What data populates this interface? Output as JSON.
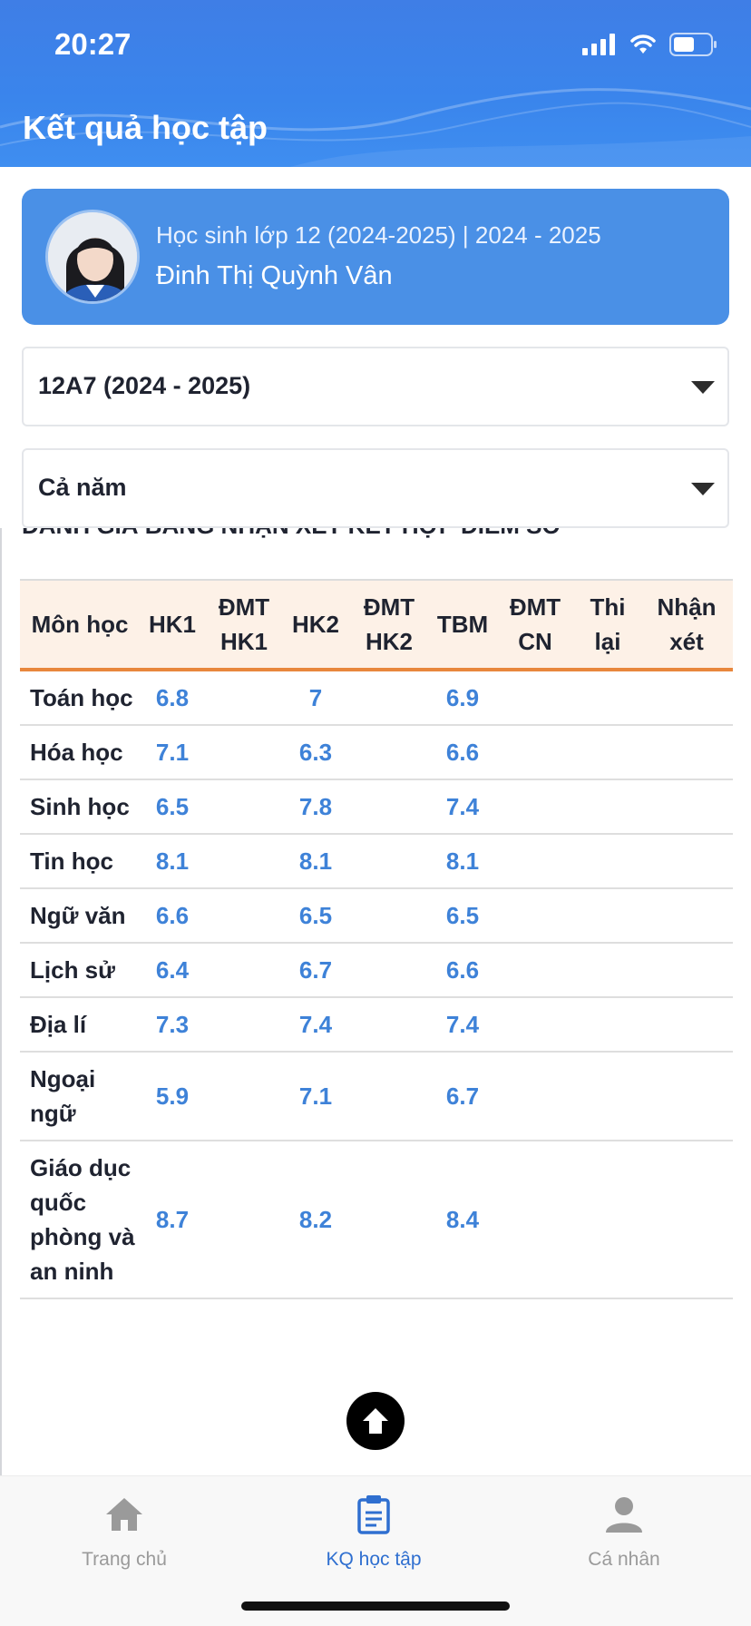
{
  "status_bar": {
    "time": "20:27"
  },
  "header": {
    "title": "Kết quả học tập"
  },
  "profile": {
    "class_line": "Học sinh lớp 12 (2024-2025) | 2024 - 2025",
    "name": "Đinh Thị Quỳnh Vân"
  },
  "filters": {
    "class_value": "12A7 (2024 - 2025)",
    "term_value": "Cả năm"
  },
  "section": {
    "title": "ĐÁNH GIÁ BẰNG NHẬN XÉT KẾT HỢP ĐIỂM SỐ"
  },
  "table": {
    "headers": [
      "Môn học",
      "HK1",
      "ĐMT HK1",
      "HK2",
      "ĐMT HK2",
      "TBM",
      "ĐMT CN",
      "Thi lại",
      "Nhận xét"
    ],
    "rows": [
      {
        "subject": "Toán học",
        "hk1": "6.8",
        "hk2": "7",
        "tbm": "6.9"
      },
      {
        "subject": "Hóa học",
        "hk1": "7.1",
        "hk2": "6.3",
        "tbm": "6.6"
      },
      {
        "subject": "Sinh học",
        "hk1": "6.5",
        "hk2": "7.8",
        "tbm": "7.4"
      },
      {
        "subject": "Tin học",
        "hk1": "8.1",
        "hk2": "8.1",
        "tbm": "8.1"
      },
      {
        "subject": "Ngữ văn",
        "hk1": "6.6",
        "hk2": "6.5",
        "tbm": "6.5"
      },
      {
        "subject": "Lịch sử",
        "hk1": "6.4",
        "hk2": "6.7",
        "tbm": "6.6"
      },
      {
        "subject": "Địa lí",
        "hk1": "7.3",
        "hk2": "7.4",
        "tbm": "7.4"
      },
      {
        "subject": "Ngoại ngữ",
        "hk1": "5.9",
        "hk2": "7.1",
        "tbm": "6.7"
      },
      {
        "subject": "Giáo dục quốc phòng và an ninh",
        "hk1": "8.7",
        "hk2": "8.2",
        "tbm": "8.4"
      }
    ]
  },
  "bottom_nav": {
    "items": [
      {
        "label": "Trang chủ",
        "icon": "home-icon"
      },
      {
        "label": "KQ học tập",
        "icon": "clipboard-icon"
      },
      {
        "label": "Cá nhân",
        "icon": "person-icon"
      }
    ]
  },
  "colors": {
    "header_blue": "#3f84ec",
    "card_blue": "#4a90e6",
    "score_blue": "#3e82d8",
    "table_header_bg": "#fdf1e7",
    "table_header_border": "#e8873d",
    "nav_active": "#2f6fd0"
  }
}
